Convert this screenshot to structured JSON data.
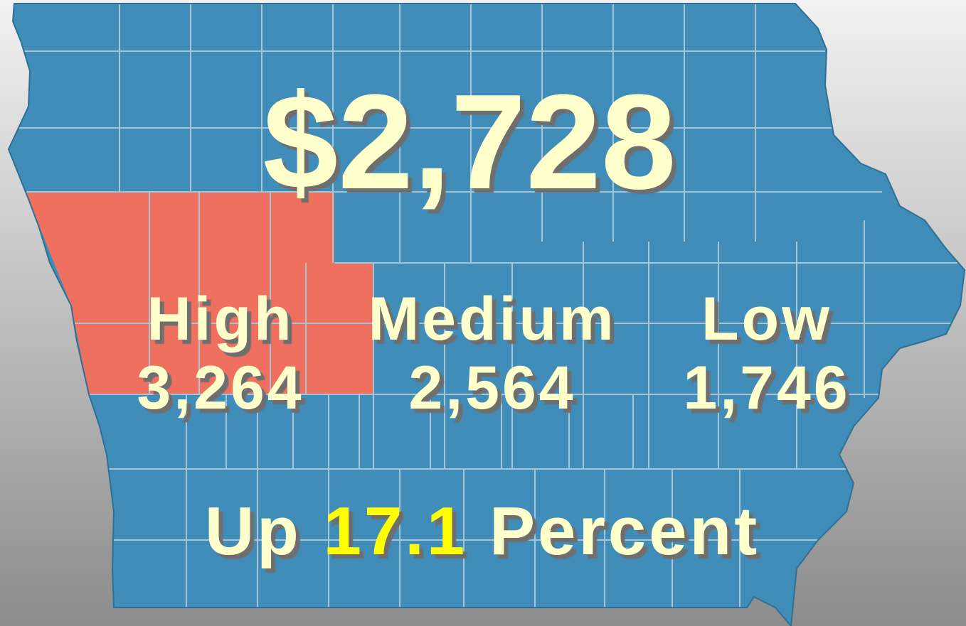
{
  "headline": "$2,728",
  "regions": [
    {
      "label": "High",
      "value": "3,264"
    },
    {
      "label": "Medium",
      "value": "2,564"
    },
    {
      "label": "Low",
      "value": "1,746"
    }
  ],
  "footer": {
    "prefix": "Up",
    "change": "17.1",
    "suffix": "Percent"
  }
}
